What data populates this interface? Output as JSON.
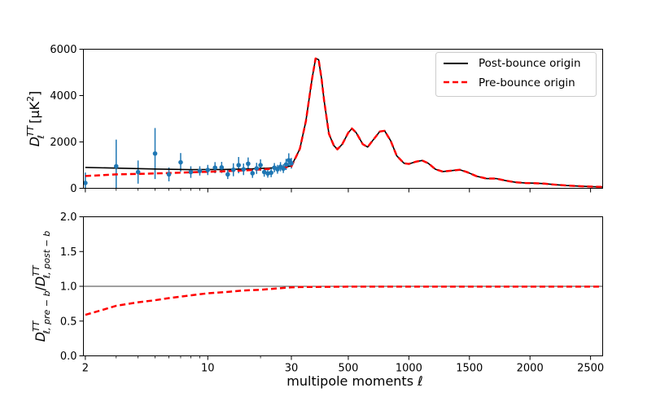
{
  "chart_data": {
    "type": "line",
    "x_scale": "hybrid: log for l < 30, linear for l >= 30",
    "xlabel": "multipole moments   ℓ",
    "x_ticks": [
      {
        "value": 2,
        "label": "2"
      },
      {
        "value": 10,
        "label": "10"
      },
      {
        "value": 30,
        "label": "30"
      },
      {
        "value": 500,
        "label": "500"
      },
      {
        "value": 1000,
        "label": "1000"
      },
      {
        "value": 1500,
        "label": "1500"
      },
      {
        "value": 2000,
        "label": "2000"
      },
      {
        "value": 2500,
        "label": "2500"
      }
    ],
    "xlim": [
      1.95,
      2600
    ],
    "top_panel": {
      "ylabel_main": "D",
      "ylabel_sub": "ℓ",
      "ylabel_sup": "TT",
      "ylabel_units": "[μK",
      "ylabel_units_sup": "2",
      "ylabel_units_close": "]",
      "ylim": [
        0,
        6000
      ],
      "y_ticks": [
        "0",
        "2000",
        "4000",
        "6000"
      ],
      "legend_position": "top-right",
      "series": [
        {
          "name": "Post-bounce origin",
          "color": "#000000",
          "style": "solid",
          "points": [
            [
              2,
              900
            ],
            [
              3,
              870
            ],
            [
              5,
              830
            ],
            [
              8,
              805
            ],
            [
              12,
              810
            ],
            [
              18,
              840
            ],
            [
              25,
              890
            ],
            [
              30,
              960
            ],
            [
              100,
              1700
            ],
            [
              150,
              2900
            ],
            [
              200,
              4700
            ],
            [
              230,
              5600
            ],
            [
              255,
              5550
            ],
            [
              280,
              4700
            ],
            [
              300,
              3800
            ],
            [
              340,
              2350
            ],
            [
              380,
              1850
            ],
            [
              410,
              1680
            ],
            [
              450,
              1900
            ],
            [
              500,
              2400
            ],
            [
              530,
              2580
            ],
            [
              565,
              2400
            ],
            [
              620,
              1900
            ],
            [
              660,
              1780
            ],
            [
              700,
              2050
            ],
            [
              760,
              2450
            ],
            [
              800,
              2480
            ],
            [
              850,
              2050
            ],
            [
              900,
              1400
            ],
            [
              960,
              1080
            ],
            [
              1000,
              1050
            ],
            [
              1060,
              1150
            ],
            [
              1110,
              1200
            ],
            [
              1160,
              1080
            ],
            [
              1220,
              820
            ],
            [
              1280,
              720
            ],
            [
              1350,
              760
            ],
            [
              1420,
              800
            ],
            [
              1480,
              700
            ],
            [
              1560,
              520
            ],
            [
              1640,
              420
            ],
            [
              1720,
              420
            ],
            [
              1800,
              330
            ],
            [
              1880,
              260
            ],
            [
              1960,
              230
            ],
            [
              2040,
              220
            ],
            [
              2120,
              200
            ],
            [
              2200,
              160
            ],
            [
              2300,
              120
            ],
            [
              2420,
              90
            ],
            [
              2520,
              70
            ],
            [
              2600,
              60
            ]
          ]
        },
        {
          "name": "Pre-bounce origin",
          "color": "#ff0000",
          "style": "dashed",
          "points": [
            [
              2,
              530
            ],
            [
              3,
              600
            ],
            [
              5,
              640
            ],
            [
              8,
              690
            ],
            [
              12,
              730
            ],
            [
              18,
              790
            ],
            [
              25,
              860
            ],
            [
              30,
              940
            ],
            [
              100,
              1700
            ],
            [
              150,
              2900
            ],
            [
              200,
              4700
            ],
            [
              230,
              5600
            ],
            [
              255,
              5550
            ],
            [
              280,
              4700
            ],
            [
              300,
              3800
            ],
            [
              340,
              2350
            ],
            [
              380,
              1850
            ],
            [
              410,
              1680
            ],
            [
              450,
              1900
            ],
            [
              500,
              2400
            ],
            [
              530,
              2580
            ],
            [
              565,
              2400
            ],
            [
              620,
              1900
            ],
            [
              660,
              1780
            ],
            [
              700,
              2050
            ],
            [
              760,
              2450
            ],
            [
              800,
              2480
            ],
            [
              850,
              2050
            ],
            [
              900,
              1400
            ],
            [
              960,
              1080
            ],
            [
              1000,
              1050
            ],
            [
              1060,
              1150
            ],
            [
              1110,
              1200
            ],
            [
              1160,
              1080
            ],
            [
              1220,
              820
            ],
            [
              1280,
              720
            ],
            [
              1350,
              760
            ],
            [
              1420,
              800
            ],
            [
              1480,
              700
            ],
            [
              1560,
              520
            ],
            [
              1640,
              420
            ],
            [
              1720,
              420
            ],
            [
              1800,
              330
            ],
            [
              1880,
              260
            ],
            [
              1960,
              230
            ],
            [
              2040,
              220
            ],
            [
              2120,
              200
            ],
            [
              2200,
              160
            ],
            [
              2300,
              120
            ],
            [
              2420,
              90
            ],
            [
              2520,
              70
            ],
            [
              2600,
              60
            ]
          ]
        }
      ],
      "data_points": {
        "color": "#1f77b4",
        "points": [
          {
            "l": 2,
            "d": 230,
            "err": 450
          },
          {
            "l": 3,
            "d": 950,
            "err": 1150
          },
          {
            "l": 4,
            "d": 700,
            "err": 500
          },
          {
            "l": 5,
            "d": 1500,
            "err": 1100
          },
          {
            "l": 6,
            "d": 600,
            "err": 300
          },
          {
            "l": 7,
            "d": 1120,
            "err": 400
          },
          {
            "l": 8,
            "d": 700,
            "err": 250
          },
          {
            "l": 9,
            "d": 750,
            "err": 200
          },
          {
            "l": 10,
            "d": 790,
            "err": 220
          },
          {
            "l": 11,
            "d": 890,
            "err": 240
          },
          {
            "l": 12,
            "d": 900,
            "err": 240
          },
          {
            "l": 13,
            "d": 600,
            "err": 200
          },
          {
            "l": 14,
            "d": 800,
            "err": 280
          },
          {
            "l": 15,
            "d": 1000,
            "err": 350
          },
          {
            "l": 16,
            "d": 820,
            "err": 250
          },
          {
            "l": 17,
            "d": 1060,
            "err": 270
          },
          {
            "l": 18,
            "d": 650,
            "err": 200
          },
          {
            "l": 19,
            "d": 860,
            "err": 240
          },
          {
            "l": 20,
            "d": 1000,
            "err": 250
          },
          {
            "l": 21,
            "d": 700,
            "err": 200
          },
          {
            "l": 22,
            "d": 640,
            "err": 180
          },
          {
            "l": 23,
            "d": 670,
            "err": 190
          },
          {
            "l": 24,
            "d": 890,
            "err": 200
          },
          {
            "l": 25,
            "d": 820,
            "err": 190
          },
          {
            "l": 26,
            "d": 930,
            "err": 200
          },
          {
            "l": 27,
            "d": 850,
            "err": 190
          },
          {
            "l": 28,
            "d": 1030,
            "err": 240
          },
          {
            "l": 29,
            "d": 1210,
            "err": 300
          },
          {
            "l": 30,
            "d": 1080,
            "err": 230
          }
        ]
      }
    },
    "bottom_panel": {
      "ylabel_main": "D",
      "ylabel_sub_1": "ℓ, pre − b",
      "ylabel_sup": "TT",
      "ylabel_sep": "/",
      "ylabel_sub_2": "ℓ, post − b",
      "ylim": [
        0,
        2
      ],
      "y_ticks": [
        "0.0",
        "0.5",
        "1.0",
        "1.5",
        "2.0"
      ],
      "reference_line": 1.0,
      "series": [
        {
          "color": "#ff0000",
          "style": "dashed",
          "points": [
            [
              2,
              0.59
            ],
            [
              2.5,
              0.66
            ],
            [
              3,
              0.72
            ],
            [
              4,
              0.77
            ],
            [
              5,
              0.8
            ],
            [
              6,
              0.83
            ],
            [
              8,
              0.87
            ],
            [
              10,
              0.9
            ],
            [
              13,
              0.92
            ],
            [
              16,
              0.94
            ],
            [
              20,
              0.95
            ],
            [
              25,
              0.97
            ],
            [
              30,
              0.985
            ],
            [
              100,
              0.99
            ],
            [
              500,
              0.995
            ],
            [
              1000,
              0.995
            ],
            [
              2600,
              0.995
            ]
          ]
        }
      ]
    }
  }
}
